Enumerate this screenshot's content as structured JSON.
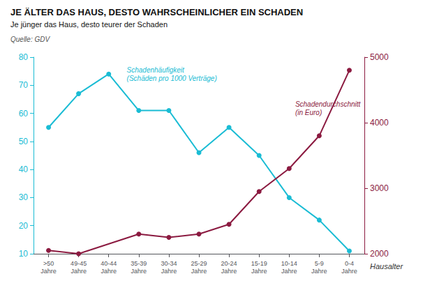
{
  "chart_data": {
    "type": "line",
    "title": "JE ÄLTER DAS HAUS, DESTO WAHRSCHEINLICHER EIN SCHADEN",
    "subtitle": "Je jünger das Haus, desto teurer der Schaden",
    "source": "Quelle: GDV",
    "xlabel": "Hausalter",
    "categories": [
      ">50\nJahre",
      "49-45\nJahre",
      "40-44\nJahre",
      "35-39\nJahre",
      "30-34\nJahre",
      "25-29\nJahre",
      "20-24\nJahre",
      "15-19\nJahre",
      "10-14\nJahre",
      "5-9\nJahre",
      "0-4\nJahre"
    ],
    "series": [
      {
        "name": "Schadenhäufigkeit\n(Schäden pro 1000 Verträge)",
        "color": "#1ABCD4",
        "marker": "circle",
        "values": [
          55,
          67,
          74,
          61,
          61,
          46,
          55,
          45,
          30,
          22,
          11
        ]
      },
      {
        "name": "Schadendurchschnitt\n(in Euro)",
        "color": "#8B1A40",
        "marker": "circle",
        "axis": "y2",
        "values": [
          2050,
          2000,
          null,
          2300,
          2250,
          2300,
          2450,
          2950,
          3300,
          3800,
          4800
        ]
      }
    ],
    "ylim": [
      10,
      80
    ],
    "yticks": [
      10,
      20,
      30,
      40,
      50,
      60,
      70,
      80
    ],
    "y2lim": [
      2000,
      5000
    ],
    "y2ticks": [
      2000,
      3000,
      4000,
      5000
    ],
    "grid": false
  }
}
